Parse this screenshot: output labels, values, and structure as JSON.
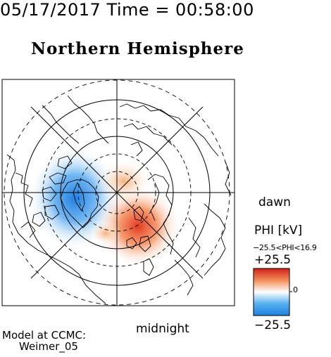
{
  "header": {
    "timestamp": "05/17/2017 Time = 00:58:00",
    "title": "Northern Hemisphere"
  },
  "map": {
    "projection": "polar-stereographic",
    "hemisphere": "north",
    "labels": {
      "dawn": "dawn",
      "midnight": "midnight"
    },
    "potential_cells": [
      {
        "name": "dusk-negative",
        "peak_kv": -25.5,
        "color": "#3d86e8"
      },
      {
        "name": "dawn-positive",
        "peak_kv": 16.9,
        "color": "#e8492f"
      }
    ]
  },
  "colorbar": {
    "label": "PHI [kV]",
    "range_text": "−25.5<PHI<16.9",
    "max_label": "+25.5",
    "min_label": "−25.5",
    "zero_label": "0",
    "colors": [
      "#d0201a",
      "#f48c58",
      "#ffffff",
      "#55aef0",
      "#1f82e0"
    ]
  },
  "footer": {
    "model_line1": "Model at CCMC:",
    "model_line2": "Weimer_05"
  }
}
